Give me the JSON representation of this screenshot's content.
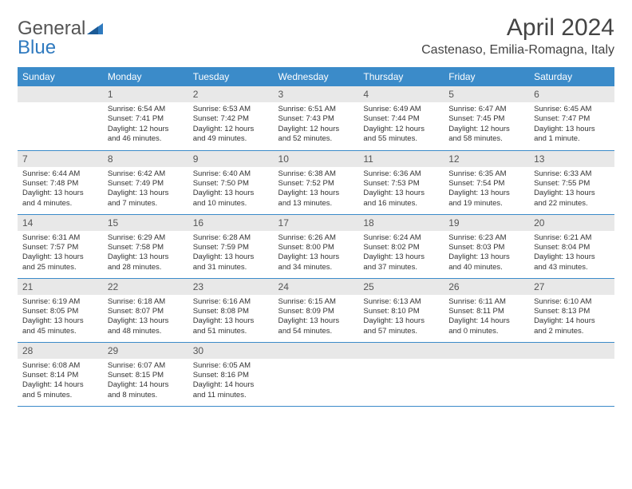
{
  "logo": {
    "textGray": "General",
    "textBlue": "Blue"
  },
  "title": "April 2024",
  "location": "Castenaso, Emilia-Romagna, Italy",
  "colors": {
    "headerBg": "#3b8bc9",
    "headerText": "#ffffff",
    "dayNumBg": "#e8e8e8",
    "rowBorder": "#3b8bc9",
    "logoBlue": "#2f7abf",
    "logoGray": "#555"
  },
  "weekdays": [
    "Sunday",
    "Monday",
    "Tuesday",
    "Wednesday",
    "Thursday",
    "Friday",
    "Saturday"
  ],
  "firstWeekday": 1,
  "days": [
    {
      "n": 1,
      "sr": "6:54 AM",
      "ss": "7:41 PM",
      "dl": "12 hours and 46 minutes."
    },
    {
      "n": 2,
      "sr": "6:53 AM",
      "ss": "7:42 PM",
      "dl": "12 hours and 49 minutes."
    },
    {
      "n": 3,
      "sr": "6:51 AM",
      "ss": "7:43 PM",
      "dl": "12 hours and 52 minutes."
    },
    {
      "n": 4,
      "sr": "6:49 AM",
      "ss": "7:44 PM",
      "dl": "12 hours and 55 minutes."
    },
    {
      "n": 5,
      "sr": "6:47 AM",
      "ss": "7:45 PM",
      "dl": "12 hours and 58 minutes."
    },
    {
      "n": 6,
      "sr": "6:45 AM",
      "ss": "7:47 PM",
      "dl": "13 hours and 1 minute."
    },
    {
      "n": 7,
      "sr": "6:44 AM",
      "ss": "7:48 PM",
      "dl": "13 hours and 4 minutes."
    },
    {
      "n": 8,
      "sr": "6:42 AM",
      "ss": "7:49 PM",
      "dl": "13 hours and 7 minutes."
    },
    {
      "n": 9,
      "sr": "6:40 AM",
      "ss": "7:50 PM",
      "dl": "13 hours and 10 minutes."
    },
    {
      "n": 10,
      "sr": "6:38 AM",
      "ss": "7:52 PM",
      "dl": "13 hours and 13 minutes."
    },
    {
      "n": 11,
      "sr": "6:36 AM",
      "ss": "7:53 PM",
      "dl": "13 hours and 16 minutes."
    },
    {
      "n": 12,
      "sr": "6:35 AM",
      "ss": "7:54 PM",
      "dl": "13 hours and 19 minutes."
    },
    {
      "n": 13,
      "sr": "6:33 AM",
      "ss": "7:55 PM",
      "dl": "13 hours and 22 minutes."
    },
    {
      "n": 14,
      "sr": "6:31 AM",
      "ss": "7:57 PM",
      "dl": "13 hours and 25 minutes."
    },
    {
      "n": 15,
      "sr": "6:29 AM",
      "ss": "7:58 PM",
      "dl": "13 hours and 28 minutes."
    },
    {
      "n": 16,
      "sr": "6:28 AM",
      "ss": "7:59 PM",
      "dl": "13 hours and 31 minutes."
    },
    {
      "n": 17,
      "sr": "6:26 AM",
      "ss": "8:00 PM",
      "dl": "13 hours and 34 minutes."
    },
    {
      "n": 18,
      "sr": "6:24 AM",
      "ss": "8:02 PM",
      "dl": "13 hours and 37 minutes."
    },
    {
      "n": 19,
      "sr": "6:23 AM",
      "ss": "8:03 PM",
      "dl": "13 hours and 40 minutes."
    },
    {
      "n": 20,
      "sr": "6:21 AM",
      "ss": "8:04 PM",
      "dl": "13 hours and 43 minutes."
    },
    {
      "n": 21,
      "sr": "6:19 AM",
      "ss": "8:05 PM",
      "dl": "13 hours and 45 minutes."
    },
    {
      "n": 22,
      "sr": "6:18 AM",
      "ss": "8:07 PM",
      "dl": "13 hours and 48 minutes."
    },
    {
      "n": 23,
      "sr": "6:16 AM",
      "ss": "8:08 PM",
      "dl": "13 hours and 51 minutes."
    },
    {
      "n": 24,
      "sr": "6:15 AM",
      "ss": "8:09 PM",
      "dl": "13 hours and 54 minutes."
    },
    {
      "n": 25,
      "sr": "6:13 AM",
      "ss": "8:10 PM",
      "dl": "13 hours and 57 minutes."
    },
    {
      "n": 26,
      "sr": "6:11 AM",
      "ss": "8:11 PM",
      "dl": "14 hours and 0 minutes."
    },
    {
      "n": 27,
      "sr": "6:10 AM",
      "ss": "8:13 PM",
      "dl": "14 hours and 2 minutes."
    },
    {
      "n": 28,
      "sr": "6:08 AM",
      "ss": "8:14 PM",
      "dl": "14 hours and 5 minutes."
    },
    {
      "n": 29,
      "sr": "6:07 AM",
      "ss": "8:15 PM",
      "dl": "14 hours and 8 minutes."
    },
    {
      "n": 30,
      "sr": "6:05 AM",
      "ss": "8:16 PM",
      "dl": "14 hours and 11 minutes."
    }
  ],
  "labels": {
    "sunrise": "Sunrise:",
    "sunset": "Sunset:",
    "daylight": "Daylight:"
  }
}
